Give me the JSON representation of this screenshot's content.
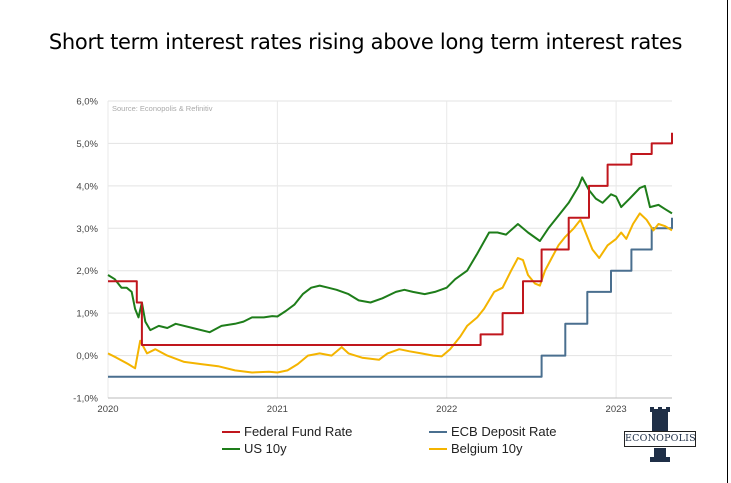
{
  "page": {
    "title": "Short term interest rates rising above long term interest rates",
    "logo_text": "ECONOPOLIS"
  },
  "chart_data": {
    "type": "line",
    "title": "Short term interest rates rising above long term interest rates",
    "source": "Source: Econopolis & Refinitiv",
    "xlabel": "",
    "ylabel": "",
    "xlim": [
      2020.0,
      2023.33
    ],
    "ylim": [
      -1.0,
      6.0
    ],
    "y_ticks": [
      "-1,0%",
      "0,0%",
      "1,0%",
      "2,0%",
      "3,0%",
      "4,0%",
      "5,0%",
      "6,0%"
    ],
    "x_ticks": [
      "2020",
      "2021",
      "2022",
      "2023"
    ],
    "grid": true,
    "legend_position": "bottom",
    "colors": {
      "fed": "#c0161d",
      "ecb": "#4a6f8f",
      "us10y": "#1e7d1a",
      "belgium": "#f4b400"
    },
    "series": [
      {
        "name": "Federal Fund Rate",
        "step": true,
        "points": [
          [
            2020.0,
            1.75
          ],
          [
            2020.17,
            1.75
          ],
          [
            2020.17,
            1.25
          ],
          [
            2020.2,
            1.25
          ],
          [
            2020.2,
            0.25
          ],
          [
            2022.2,
            0.25
          ],
          [
            2022.2,
            0.5
          ],
          [
            2022.33,
            0.5
          ],
          [
            2022.33,
            1.0
          ],
          [
            2022.45,
            1.0
          ],
          [
            2022.45,
            1.75
          ],
          [
            2022.56,
            1.75
          ],
          [
            2022.56,
            2.5
          ],
          [
            2022.72,
            2.5
          ],
          [
            2022.72,
            3.25
          ],
          [
            2022.84,
            3.25
          ],
          [
            2022.84,
            4.0
          ],
          [
            2022.95,
            4.0
          ],
          [
            2022.95,
            4.5
          ],
          [
            2023.09,
            4.5
          ],
          [
            2023.09,
            4.75
          ],
          [
            2023.21,
            4.75
          ],
          [
            2023.21,
            5.0
          ],
          [
            2023.33,
            5.0
          ],
          [
            2023.33,
            5.25
          ]
        ]
      },
      {
        "name": "ECB Deposit Rate",
        "step": true,
        "points": [
          [
            2020.0,
            -0.5
          ],
          [
            2022.56,
            -0.5
          ],
          [
            2022.56,
            0.0
          ],
          [
            2022.7,
            0.0
          ],
          [
            2022.7,
            0.75
          ],
          [
            2022.83,
            0.75
          ],
          [
            2022.83,
            1.5
          ],
          [
            2022.97,
            1.5
          ],
          [
            2022.97,
            2.0
          ],
          [
            2023.09,
            2.0
          ],
          [
            2023.09,
            2.5
          ],
          [
            2023.21,
            2.5
          ],
          [
            2023.21,
            3.0
          ],
          [
            2023.33,
            3.0
          ],
          [
            2023.33,
            3.25
          ]
        ]
      },
      {
        "name": "US 10y",
        "points": [
          [
            2020.0,
            1.9
          ],
          [
            2020.04,
            1.8
          ],
          [
            2020.08,
            1.6
          ],
          [
            2020.11,
            1.6
          ],
          [
            2020.14,
            1.5
          ],
          [
            2020.16,
            1.1
          ],
          [
            2020.18,
            0.9
          ],
          [
            2020.2,
            1.25
          ],
          [
            2020.22,
            0.8
          ],
          [
            2020.25,
            0.6
          ],
          [
            2020.3,
            0.7
          ],
          [
            2020.35,
            0.65
          ],
          [
            2020.4,
            0.75
          ],
          [
            2020.5,
            0.65
          ],
          [
            2020.6,
            0.55
          ],
          [
            2020.67,
            0.7
          ],
          [
            2020.75,
            0.75
          ],
          [
            2020.8,
            0.8
          ],
          [
            2020.85,
            0.9
          ],
          [
            2020.92,
            0.9
          ],
          [
            2020.97,
            0.93
          ],
          [
            2021.0,
            0.92
          ],
          [
            2021.05,
            1.05
          ],
          [
            2021.1,
            1.2
          ],
          [
            2021.15,
            1.45
          ],
          [
            2021.2,
            1.6
          ],
          [
            2021.25,
            1.65
          ],
          [
            2021.3,
            1.6
          ],
          [
            2021.35,
            1.55
          ],
          [
            2021.42,
            1.45
          ],
          [
            2021.48,
            1.3
          ],
          [
            2021.55,
            1.25
          ],
          [
            2021.62,
            1.35
          ],
          [
            2021.7,
            1.5
          ],
          [
            2021.75,
            1.55
          ],
          [
            2021.8,
            1.5
          ],
          [
            2021.87,
            1.45
          ],
          [
            2021.93,
            1.5
          ],
          [
            2022.0,
            1.6
          ],
          [
            2022.05,
            1.8
          ],
          [
            2022.12,
            2.0
          ],
          [
            2022.18,
            2.4
          ],
          [
            2022.25,
            2.9
          ],
          [
            2022.3,
            2.9
          ],
          [
            2022.35,
            2.85
          ],
          [
            2022.42,
            3.1
          ],
          [
            2022.48,
            2.9
          ],
          [
            2022.55,
            2.7
          ],
          [
            2022.6,
            3.0
          ],
          [
            2022.66,
            3.3
          ],
          [
            2022.72,
            3.6
          ],
          [
            2022.78,
            4.0
          ],
          [
            2022.8,
            4.2
          ],
          [
            2022.84,
            3.9
          ],
          [
            2022.88,
            3.7
          ],
          [
            2022.92,
            3.6
          ],
          [
            2022.97,
            3.8
          ],
          [
            2023.0,
            3.75
          ],
          [
            2023.03,
            3.5
          ],
          [
            2023.08,
            3.7
          ],
          [
            2023.14,
            3.95
          ],
          [
            2023.17,
            4.0
          ],
          [
            2023.2,
            3.5
          ],
          [
            2023.25,
            3.55
          ],
          [
            2023.29,
            3.45
          ],
          [
            2023.33,
            3.35
          ]
        ]
      },
      {
        "name": "Belgium 10y",
        "points": [
          [
            2020.0,
            0.05
          ],
          [
            2020.05,
            -0.05
          ],
          [
            2020.12,
            -0.2
          ],
          [
            2020.16,
            -0.3
          ],
          [
            2020.19,
            0.35
          ],
          [
            2020.23,
            0.05
          ],
          [
            2020.28,
            0.15
          ],
          [
            2020.35,
            0.0
          ],
          [
            2020.45,
            -0.15
          ],
          [
            2020.55,
            -0.2
          ],
          [
            2020.65,
            -0.25
          ],
          [
            2020.75,
            -0.35
          ],
          [
            2020.85,
            -0.4
          ],
          [
            2020.95,
            -0.38
          ],
          [
            2021.0,
            -0.4
          ],
          [
            2021.06,
            -0.35
          ],
          [
            2021.12,
            -0.2
          ],
          [
            2021.18,
            0.0
          ],
          [
            2021.25,
            0.05
          ],
          [
            2021.32,
            0.0
          ],
          [
            2021.38,
            0.2
          ],
          [
            2021.42,
            0.05
          ],
          [
            2021.5,
            -0.05
          ],
          [
            2021.6,
            -0.1
          ],
          [
            2021.65,
            0.05
          ],
          [
            2021.72,
            0.15
          ],
          [
            2021.78,
            0.1
          ],
          [
            2021.85,
            0.05
          ],
          [
            2021.92,
            0.0
          ],
          [
            2021.97,
            -0.02
          ],
          [
            2022.02,
            0.15
          ],
          [
            2022.08,
            0.45
          ],
          [
            2022.12,
            0.7
          ],
          [
            2022.18,
            0.9
          ],
          [
            2022.22,
            1.1
          ],
          [
            2022.28,
            1.5
          ],
          [
            2022.33,
            1.6
          ],
          [
            2022.38,
            2.0
          ],
          [
            2022.42,
            2.3
          ],
          [
            2022.45,
            2.25
          ],
          [
            2022.48,
            1.9
          ],
          [
            2022.52,
            1.7
          ],
          [
            2022.55,
            1.65
          ],
          [
            2022.58,
            2.0
          ],
          [
            2022.62,
            2.3
          ],
          [
            2022.66,
            2.6
          ],
          [
            2022.7,
            2.8
          ],
          [
            2022.75,
            3.0
          ],
          [
            2022.79,
            3.2
          ],
          [
            2022.82,
            2.9
          ],
          [
            2022.86,
            2.5
          ],
          [
            2022.9,
            2.3
          ],
          [
            2022.95,
            2.6
          ],
          [
            2023.0,
            2.75
          ],
          [
            2023.03,
            2.9
          ],
          [
            2023.06,
            2.75
          ],
          [
            2023.1,
            3.1
          ],
          [
            2023.14,
            3.35
          ],
          [
            2023.18,
            3.2
          ],
          [
            2023.22,
            2.95
          ],
          [
            2023.25,
            3.1
          ],
          [
            2023.29,
            3.05
          ],
          [
            2023.33,
            2.95
          ]
        ]
      }
    ]
  }
}
